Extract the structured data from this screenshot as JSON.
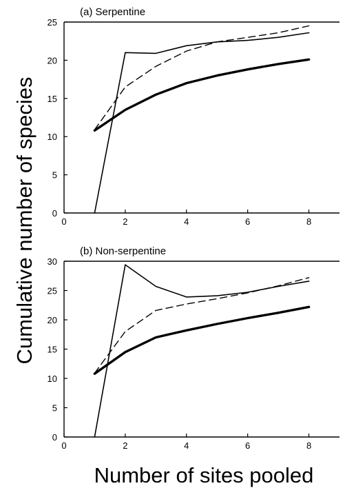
{
  "figure": {
    "ylabel": "Cumulative  number  of  species",
    "xlabel": "Number  of  sites  pooled"
  },
  "chart_data": [
    {
      "type": "line",
      "title": "(a)   Serpentine",
      "xlim": [
        0,
        9
      ],
      "ylim": [
        0,
        25
      ],
      "xticks": [
        "0",
        "2",
        "4",
        "6",
        "8"
      ],
      "yticks": [
        "0",
        "5",
        "10",
        "15",
        "20",
        "25"
      ],
      "grid": false,
      "legend": "none",
      "x": [
        1,
        2,
        3,
        4,
        5,
        6,
        7,
        8
      ],
      "series": [
        {
          "style": "thin-solid",
          "values": [
            0,
            21.0,
            20.9,
            21.9,
            22.4,
            22.6,
            23.0,
            23.6
          ]
        },
        {
          "style": "dashed",
          "values": [
            10.9,
            16.5,
            19.2,
            21.2,
            22.4,
            23.0,
            23.6,
            24.5
          ]
        },
        {
          "style": "thick-solid",
          "values": [
            10.8,
            13.5,
            15.5,
            17.0,
            18.0,
            18.8,
            19.5,
            20.1
          ]
        }
      ]
    },
    {
      "type": "line",
      "title": "(b)    Non-serpentine",
      "xlim": [
        0,
        9
      ],
      "ylim": [
        0,
        30
      ],
      "xticks": [
        "0",
        "2",
        "4",
        "6",
        "8"
      ],
      "yticks": [
        "0",
        "5",
        "10",
        "15",
        "20",
        "25",
        "30"
      ],
      "grid": false,
      "legend": "none",
      "x": [
        1,
        2,
        3,
        4,
        5,
        6,
        7,
        8
      ],
      "series": [
        {
          "style": "thin-solid",
          "values": [
            0,
            29.4,
            25.7,
            23.9,
            24.1,
            24.7,
            25.7,
            26.6
          ]
        },
        {
          "style": "dashed",
          "values": [
            10.9,
            18.0,
            21.6,
            22.7,
            23.6,
            24.6,
            25.8,
            27.2
          ]
        },
        {
          "style": "thick-solid",
          "values": [
            10.8,
            14.5,
            17.0,
            18.2,
            19.3,
            20.3,
            21.2,
            22.2
          ]
        }
      ]
    }
  ]
}
